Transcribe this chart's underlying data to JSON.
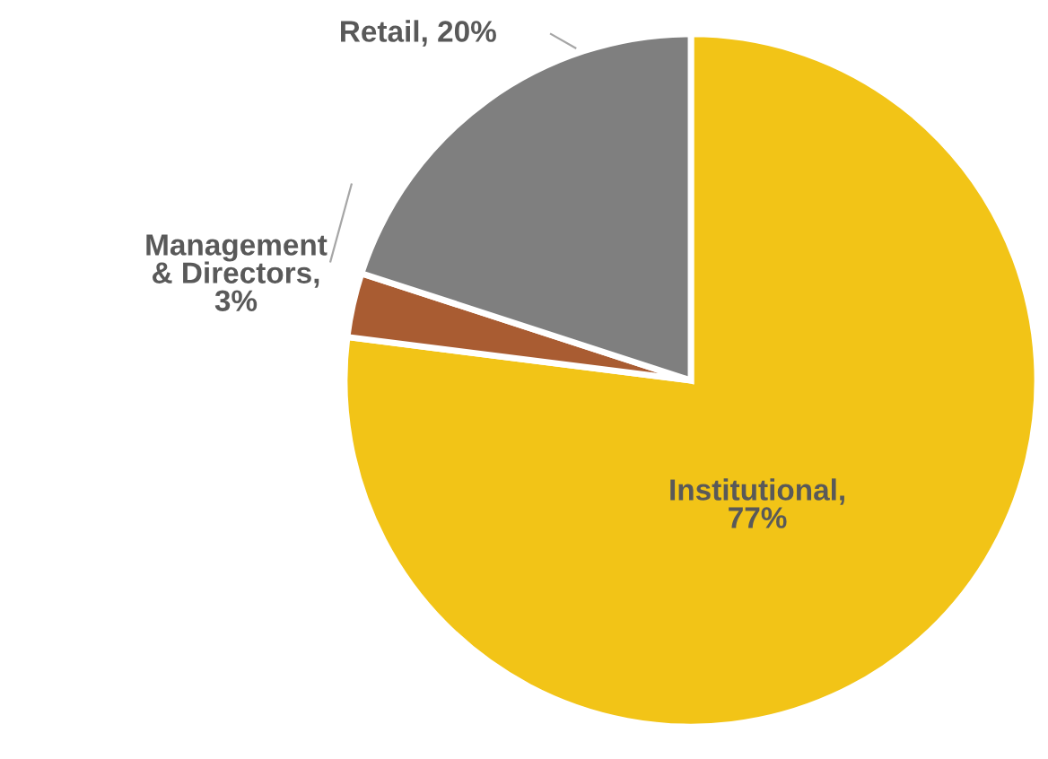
{
  "chart_data": {
    "type": "pie",
    "categories": [
      "Institutional",
      "Management & Directors",
      "Retail"
    ],
    "values": [
      77,
      3,
      20
    ],
    "colors": [
      "#f2c417",
      "#a95c32",
      "#7f7f7f"
    ],
    "value_labels": [
      ", 77%",
      ", 3%",
      ", 20%"
    ],
    "legend": false
  }
}
